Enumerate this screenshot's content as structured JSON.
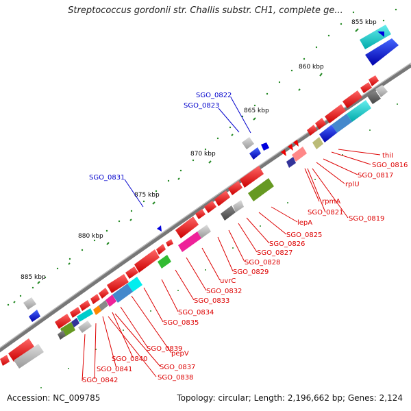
{
  "title": "Streptococcus gordonii str. Challis substr. CH1, complete ge...",
  "footer": {
    "accession": "Accession: NC_009785",
    "topology": "Topology: circular; Length: 2,196,662 bp; Genes: 2,124"
  },
  "kbp_ticks": [
    "855 kbp",
    "860 kbp",
    "865 kbp",
    "870 kbp",
    "875 kbp",
    "880 kbp",
    "885 kbp"
  ],
  "gene_labels": {
    "blue": [
      "SGO_0822",
      "SGO_0823",
      "SGO_0831"
    ],
    "red": [
      "thiI",
      "SGO_0816",
      "SGO_0817",
      "rplU",
      "rpmA",
      "SGO_0821",
      "SGO_0819",
      "lepA",
      "SGO_0825",
      "SGO_0826",
      "SGO_0827",
      "SGO_0828",
      "SGO_0829",
      "uvrC",
      "SGO_0832",
      "SGO_0833",
      "SGO_0834",
      "SGO_0835",
      "pepV",
      "SGO_0839",
      "SGO_0840",
      "SGO_0837",
      "SGO_0841",
      "SGO_0838",
      "SGO_0842"
    ]
  },
  "colors": {
    "backbone": "#888888",
    "label_red": "#dd0000",
    "label_blue": "#0000cc",
    "tick_green": "#007700",
    "gene_red": "#ee0000",
    "gene_blue": "#0000dd",
    "gene_cyan": "#00cccc",
    "gene_grey": "#aaaaaa",
    "gene_darkgrey": "#666666",
    "gene_green": "#33bb33",
    "gene_olive": "#669922",
    "gene_magenta": "#ee2299",
    "gene_steelblue": "#4488cc",
    "gene_orange": "#ff8800",
    "gene_khaki": "#bbbb77",
    "gene_pink": "#ff8888",
    "gene_navy": "#333399"
  }
}
